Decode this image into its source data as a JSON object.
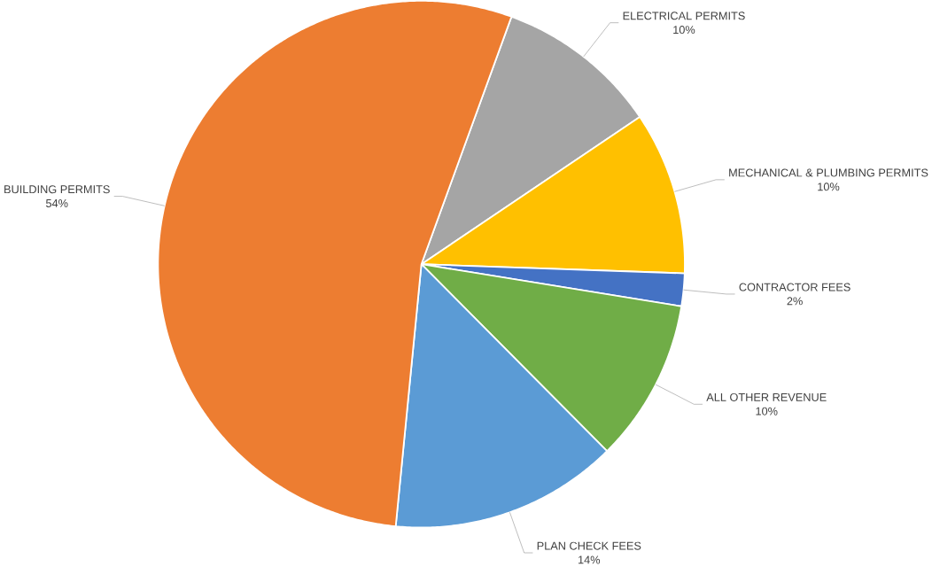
{
  "chart_data": {
    "type": "pie",
    "categories": [
      "ELECTRICAL PERMITS",
      "MECHANICAL & PLUMBING PERMITS",
      "CONTRACTOR FEES",
      "ALL OTHER REVENUE",
      "PLAN CHECK FEES",
      "BUILDING PERMITS"
    ],
    "values": [
      10,
      10,
      2,
      10,
      14,
      54
    ],
    "value_labels": [
      "10%",
      "10%",
      "2%",
      "10%",
      "14%",
      "54%"
    ],
    "colors": [
      "#a5a5a5",
      "#ffc000",
      "#4472c4",
      "#70ad47",
      "#5b9bd5",
      "#ed7d31"
    ]
  }
}
